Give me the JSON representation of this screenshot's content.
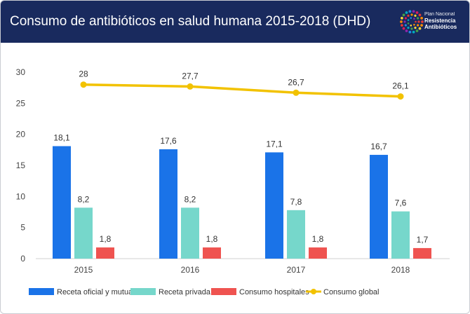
{
  "header": {
    "title": "Consumo de antibióticos en salud humana 2015-2018 (DHD)",
    "logo_lines": [
      "Plan Nacional",
      "Resistencia",
      "Antibióticos"
    ]
  },
  "colors": {
    "header_bg": "#192a5e",
    "receta_oficial": "#1a73e8",
    "receta_privada": "#76d7cb",
    "consumo_hospitales": "#ef5350",
    "consumo_global": "#f2c200"
  },
  "chart_data": {
    "type": "bar",
    "categories": [
      "2015",
      "2016",
      "2017",
      "2018"
    ],
    "series": [
      {
        "name": "Receta oficial y mutuas",
        "type": "bar",
        "values": [
          18.1,
          17.6,
          17.1,
          16.7
        ],
        "labels": [
          "18,1",
          "17,6",
          "17,1",
          "16,7"
        ]
      },
      {
        "name": "Receta privada",
        "type": "bar",
        "values": [
          8.2,
          8.2,
          7.8,
          7.6
        ],
        "labels": [
          "8,2",
          "8,2",
          "7,8",
          "7,6"
        ]
      },
      {
        "name": "Consumo hospitales",
        "type": "bar",
        "values": [
          1.8,
          1.8,
          1.8,
          1.7
        ],
        "labels": [
          "1,8",
          "1,8",
          "1,8",
          "1,7"
        ]
      },
      {
        "name": "Consumo global",
        "type": "line",
        "values": [
          28,
          27.7,
          26.7,
          26.1
        ],
        "labels": [
          "28",
          "27,7",
          "26,7",
          "26,1"
        ]
      }
    ],
    "ylim": [
      0,
      30
    ],
    "yticks": [
      "0",
      "5",
      "10",
      "15",
      "20",
      "25",
      "30"
    ],
    "grid": false,
    "legend_position": "bottom"
  }
}
